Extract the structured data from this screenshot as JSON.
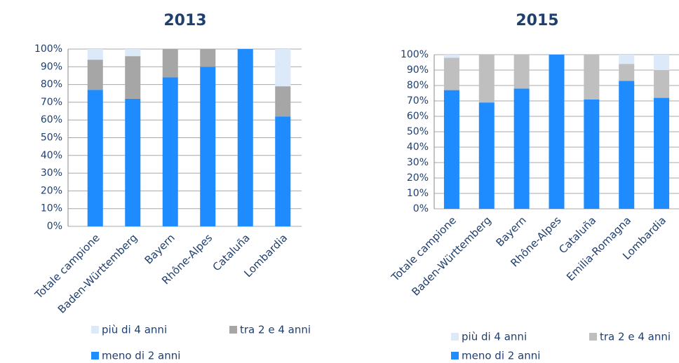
{
  "chart_data": [
    {
      "type": "bar",
      "stacked": true,
      "title": "2013",
      "categories": [
        "Totale campione",
        "Baden-Württemberg",
        "Bayern",
        "Rhône-Alpes",
        "Cataluña",
        "Lombardia"
      ],
      "series": [
        {
          "name": "più di 4 anni",
          "color": "#dce9f9",
          "values": [
            6,
            4,
            0,
            0,
            0,
            21
          ]
        },
        {
          "name": "tra 2 e 4 anni",
          "color": "#a6a6a6",
          "values": [
            17,
            24,
            16,
            10,
            0,
            17
          ]
        },
        {
          "name": "meno di 2 anni",
          "color": "#1e8cff",
          "values": [
            77,
            72,
            84,
            90,
            100,
            62
          ]
        }
      ],
      "ylim": [
        0,
        100
      ],
      "yticks": [
        {
          "value": 0,
          "label": "0%"
        },
        {
          "value": 10,
          "label": "10%"
        },
        {
          "value": 20,
          "label": "20%"
        },
        {
          "value": 30,
          "label": "30%"
        },
        {
          "value": 40,
          "label": "40%"
        },
        {
          "value": 50,
          "label": "50%"
        },
        {
          "value": 60,
          "label": "60%"
        },
        {
          "value": 70,
          "label": "70%"
        },
        {
          "value": 80,
          "label": "80%"
        },
        {
          "value": 90,
          "label": "90%"
        },
        {
          "value": 100,
          "label": "100%"
        }
      ],
      "grid": true
    },
    {
      "type": "bar",
      "stacked": true,
      "title": "2015",
      "categories": [
        "Totale campione",
        "Baden-Württemberg",
        "Bayern",
        "Rhône-Alpes",
        "Cataluña",
        "Emilia-Romagna",
        "Lombardia"
      ],
      "series": [
        {
          "name": "più di 4 anni",
          "color": "#dce9f9",
          "values": [
            2,
            0,
            0,
            0,
            0,
            6,
            10
          ]
        },
        {
          "name": "tra 2 e 4 anni",
          "color": "#bfbfbf",
          "values": [
            21,
            31,
            22,
            0,
            29,
            11,
            18
          ]
        },
        {
          "name": "meno di 2 anni",
          "color": "#1e8cff",
          "values": [
            77,
            69,
            78,
            100,
            71,
            83,
            72
          ]
        }
      ],
      "ylim": [
        0,
        100
      ],
      "yticks": [
        {
          "value": 0,
          "label": "0%"
        },
        {
          "value": 10,
          "label": "10%"
        },
        {
          "value": 20,
          "label": "20%"
        },
        {
          "value": 30,
          "label": "30%"
        },
        {
          "value": 40,
          "label": "40%"
        },
        {
          "value": 50,
          "label": "50%"
        },
        {
          "value": 60,
          "label": "60%"
        },
        {
          "value": 70,
          "label": "70%"
        },
        {
          "value": 80,
          "label": "80%"
        },
        {
          "value": 90,
          "label": "90%"
        },
        {
          "value": 100,
          "label": "100%"
        }
      ],
      "grid": true
    }
  ]
}
